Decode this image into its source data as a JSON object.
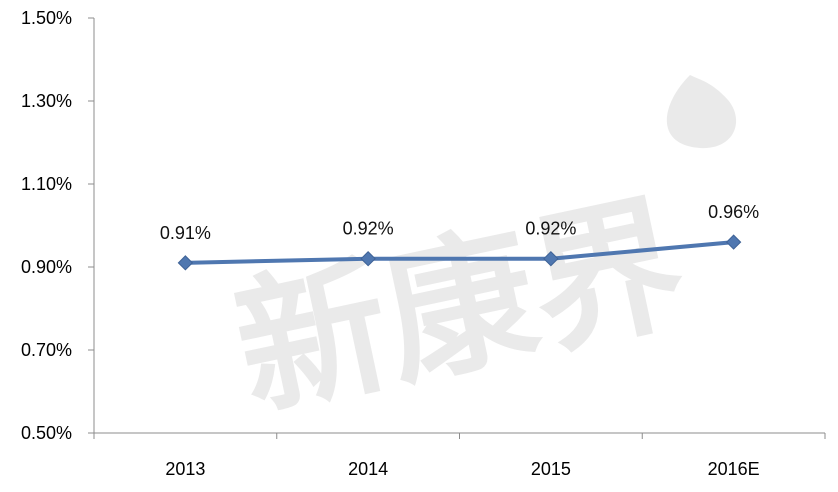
{
  "chart_data": {
    "type": "line",
    "categories": [
      "2013",
      "2014",
      "2015",
      "2016E"
    ],
    "series": [
      {
        "values": [
          0.91,
          0.92,
          0.92,
          0.96
        ],
        "color": "#4f77b0"
      }
    ],
    "data_labels": [
      "0.91%",
      "0.92%",
      "0.92%",
      "0.96%"
    ],
    "yticks": [
      "0.50%",
      "0.70%",
      "0.90%",
      "1.10%",
      "1.30%",
      "1.50%"
    ],
    "ylim": [
      0.5,
      1.5
    ],
    "marker": "diamond",
    "grid": false,
    "legend": "none"
  },
  "watermark": {
    "text": "新康界"
  }
}
